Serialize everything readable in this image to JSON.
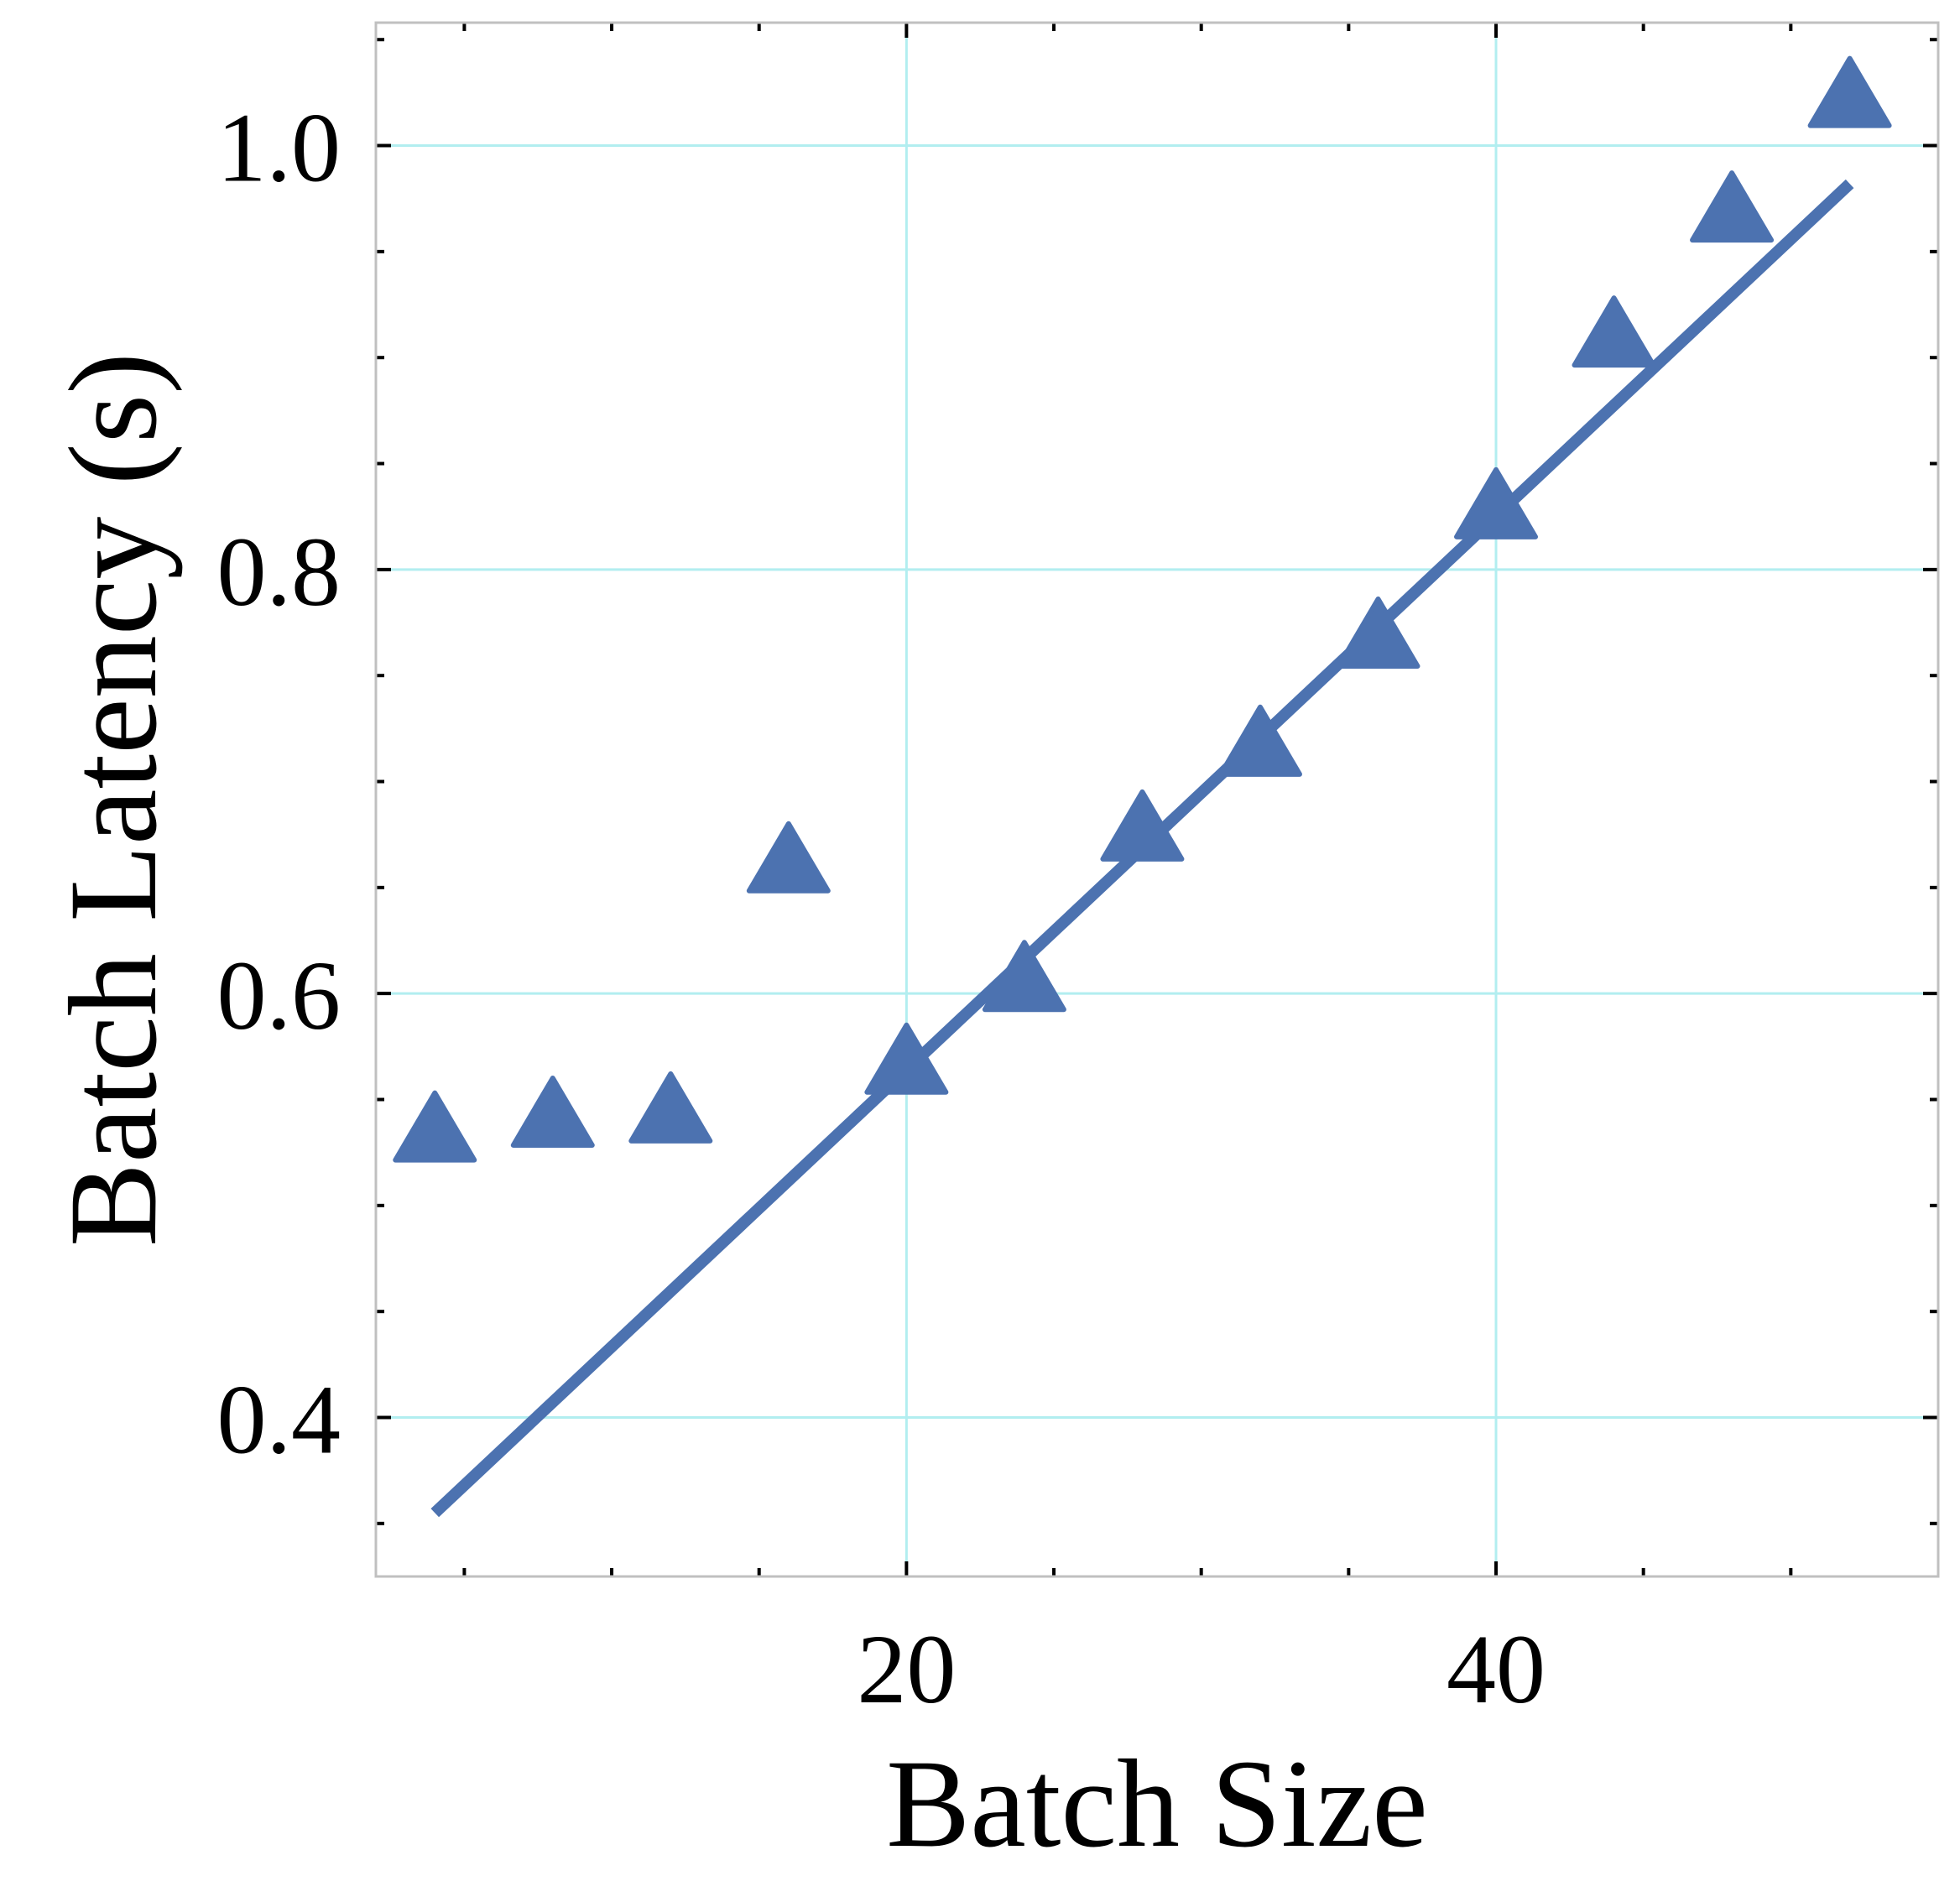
{
  "chart_data": {
    "type": "scatter",
    "title": "",
    "xlabel": "Batch Size",
    "ylabel": "Batch Latency (s)",
    "xlim": [
      2,
      55
    ],
    "ylim": [
      0.325,
      1.058
    ],
    "xticks": [
      20,
      40
    ],
    "xtick_labels": [
      "20",
      "40"
    ],
    "x_minor_ticks": [
      5,
      10,
      15,
      25,
      30,
      35,
      45,
      50
    ],
    "yticks": [
      0.4,
      0.6,
      0.8,
      1.0
    ],
    "ytick_labels": [
      "0.4",
      "0.6",
      "0.8",
      "1.0"
    ],
    "y_minor_ticks": [
      0.35,
      0.45,
      0.5,
      0.55,
      0.65,
      0.7,
      0.75,
      0.85,
      0.9,
      0.95,
      1.05
    ],
    "grid": true,
    "series": [
      {
        "kind": "scatter",
        "marker": "triangle",
        "color": "#4c72b0",
        "x": [
          4,
          8,
          12,
          16,
          20,
          24,
          28,
          32,
          36,
          40,
          44,
          48,
          52
        ],
        "y": [
          0.532,
          0.539,
          0.541,
          0.659,
          0.564,
          0.603,
          0.674,
          0.714,
          0.765,
          0.826,
          0.907,
          0.966,
          1.02
        ]
      },
      {
        "kind": "line",
        "style": "linear-fit",
        "color": "#4c72b0",
        "x": [
          4,
          52
        ],
        "y": [
          0.355,
          0.982
        ]
      }
    ],
    "colors": {
      "series": "#4c72b0",
      "grid": "#b2eef0",
      "frame": "#c0c0c0",
      "ticks": "#000000"
    }
  }
}
